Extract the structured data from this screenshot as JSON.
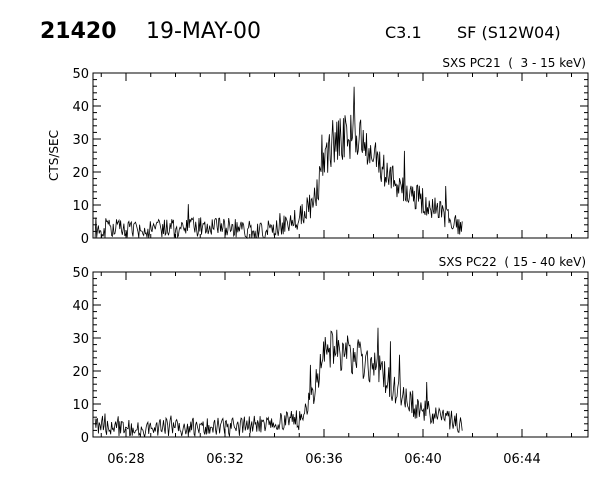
{
  "header": {
    "event_number": "21420",
    "date": "19-MAY-00",
    "flare_class": "C3.1",
    "flare_location": "SF (S12W04)"
  },
  "chart_data": [
    {
      "type": "line",
      "title": "SXS PC21  (  3 - 15 keV)",
      "xlabel": "",
      "ylabel": "CTS/SEC",
      "xlim": [
        "06:26:40",
        "06:46:40"
      ],
      "ylim": [
        0,
        50
      ],
      "y_ticks": [
        0,
        10,
        20,
        30,
        40,
        50
      ],
      "x_ticks": [
        "06:28",
        "06:32",
        "06:36",
        "06:40",
        "06:44"
      ],
      "series": [
        {
          "x": [
            "06:26:45",
            "06:27:30",
            "06:28:30",
            "06:29:30",
            "06:30:30",
            "06:31:30",
            "06:32:30",
            "06:33:30",
            "06:34:00",
            "06:34:30",
            "06:35:00",
            "06:35:30",
            "06:35:45",
            "06:36:00",
            "06:36:15",
            "06:36:30",
            "06:36:45",
            "06:37:00",
            "06:37:15",
            "06:37:30",
            "06:37:45",
            "06:38:00",
            "06:38:30",
            "06:39:00",
            "06:39:30",
            "06:40:00",
            "06:40:30",
            "06:40:50",
            "06:41:10",
            "06:41:25",
            "06:41:35"
          ],
          "y": [
            2,
            3,
            2,
            3,
            3,
            4,
            3,
            2,
            3,
            4,
            6,
            10,
            15,
            22,
            28,
            30,
            31,
            31,
            30,
            29,
            27,
            24,
            20,
            17,
            14,
            11,
            9,
            7,
            5,
            4,
            3
          ],
          "noise": 4
        }
      ]
    },
    {
      "type": "line",
      "title": "SXS PC22  ( 15 - 40 keV)",
      "xlabel": "",
      "ylabel": "",
      "xlim": [
        "06:26:40",
        "06:46:40"
      ],
      "ylim": [
        0,
        50
      ],
      "y_ticks": [
        0,
        10,
        20,
        30,
        40,
        50
      ],
      "x_ticks": [
        "06:28",
        "06:32",
        "06:36",
        "06:40",
        "06:44"
      ],
      "series": [
        {
          "x": [
            "06:26:45",
            "06:27:30",
            "06:28:30",
            "06:29:30",
            "06:30:30",
            "06:31:30",
            "06:32:30",
            "06:33:30",
            "06:34:00",
            "06:34:30",
            "06:35:00",
            "06:35:15",
            "06:35:30",
            "06:35:45",
            "06:36:00",
            "06:36:15",
            "06:36:30",
            "06:37:00",
            "06:37:30",
            "06:38:00",
            "06:38:30",
            "06:39:00",
            "06:39:30",
            "06:40:00",
            "06:40:30",
            "06:40:50",
            "06:41:10",
            "06:41:25",
            "06:41:35"
          ],
          "y": [
            3,
            3,
            2,
            3,
            3,
            3,
            3,
            4,
            4,
            5,
            5,
            7,
            12,
            19,
            24,
            26,
            26,
            25,
            24,
            22,
            18,
            13,
            10,
            8,
            7,
            6,
            5,
            4,
            4
          ],
          "noise": 4
        }
      ]
    }
  ]
}
